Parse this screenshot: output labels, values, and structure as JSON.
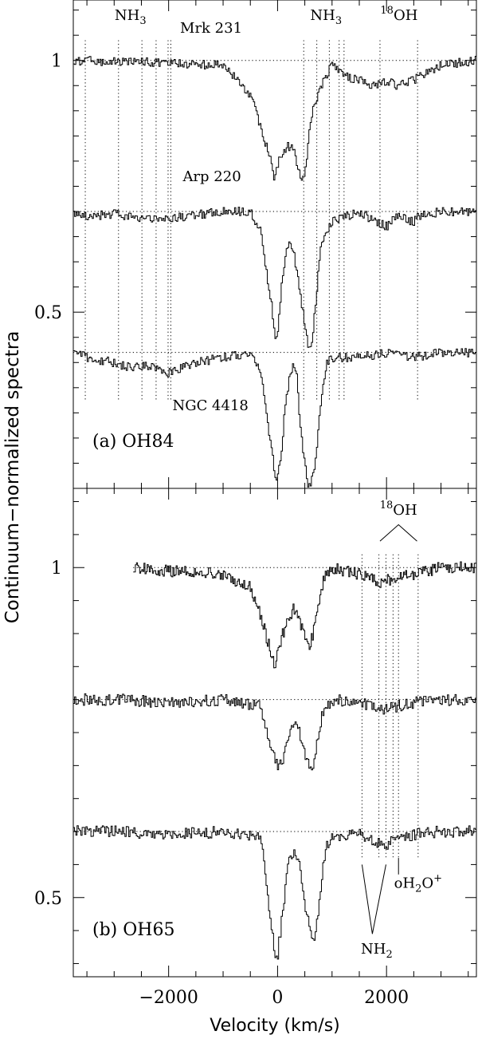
{
  "chart_data": [
    {
      "type": "line",
      "panel_label": "(a) OH84",
      "ylabel": "Continuum−normalized spectra",
      "xlim": [
        -3750,
        3650
      ],
      "ylim": [
        0.15,
        1.12
      ],
      "y_ticks": [
        {
          "value": 1,
          "label": "1"
        },
        {
          "value": 0.5,
          "label": "0.5"
        }
      ],
      "x_ticks": [
        -2000,
        0,
        2000
      ],
      "series": [
        {
          "name": "Mrk 231",
          "label_x": -1790,
          "label_y": 1.055,
          "continuum": 1.0,
          "x": [
            -3750,
            -2000,
            -1000,
            -700,
            -500,
            -400,
            -300,
            -200,
            -100,
            -60,
            0,
            100,
            200,
            300,
            400,
            450,
            500,
            550,
            600,
            700,
            800,
            900,
            1000,
            1200,
            1500,
            1800,
            2000,
            2200,
            2500,
            2600,
            3000,
            3650
          ],
          "y": [
            1.0,
            0.995,
            0.99,
            0.96,
            0.93,
            0.9,
            0.86,
            0.83,
            0.8,
            0.77,
            0.79,
            0.82,
            0.83,
            0.82,
            0.78,
            0.76,
            0.77,
            0.82,
            0.88,
            0.92,
            0.95,
            0.97,
            0.99,
            0.97,
            0.96,
            0.95,
            0.96,
            0.95,
            0.96,
            0.97,
            0.99,
            1.0
          ]
        },
        {
          "name": "Arp 220",
          "label_x": -1740,
          "label_y": 0.76,
          "continuum": 0.7,
          "x": [
            -3750,
            -3500,
            -3000,
            -2600,
            -2000,
            -1000,
            -500,
            -300,
            -200,
            -100,
            -50,
            0,
            100,
            200,
            300,
            400,
            500,
            550,
            600,
            650,
            700,
            800,
            1000,
            1500,
            1800,
            2000,
            2200,
            2500,
            2600,
            3000,
            3650
          ],
          "y": [
            0.7,
            0.69,
            0.695,
            0.685,
            0.685,
            0.7,
            0.7,
            0.66,
            0.58,
            0.51,
            0.45,
            0.46,
            0.58,
            0.64,
            0.62,
            0.55,
            0.48,
            0.44,
            0.43,
            0.45,
            0.52,
            0.63,
            0.68,
            0.7,
            0.68,
            0.67,
            0.69,
            0.68,
            0.69,
            0.7,
            0.7
          ]
        },
        {
          "name": "NGC 4418",
          "label_x": -1930,
          "label_y": 0.305,
          "continuum": 0.42,
          "x": [
            -3750,
            -3500,
            -3000,
            -2700,
            -2400,
            -2000,
            -1500,
            -1000,
            -500,
            -300,
            -200,
            -100,
            -50,
            0,
            80,
            150,
            250,
            300,
            350,
            400,
            500,
            550,
            600,
            700,
            800,
            900,
            1000,
            1500,
            2000,
            2500,
            3000,
            3650
          ],
          "y": [
            0.42,
            0.41,
            0.4,
            0.39,
            0.395,
            0.38,
            0.4,
            0.41,
            0.42,
            0.38,
            0.3,
            0.22,
            0.18,
            0.17,
            0.22,
            0.33,
            0.38,
            0.4,
            0.38,
            0.3,
            0.2,
            0.16,
            0.15,
            0.2,
            0.33,
            0.4,
            0.41,
            0.41,
            0.42,
            0.41,
            0.42,
            0.42
          ]
        }
      ],
      "vertical_markers": [
        {
          "x": -3530,
          "y_top": 1.04,
          "y_bottom": 0.325
        },
        {
          "x": -2920,
          "y_top": 1.04,
          "y_bottom": 0.325
        },
        {
          "x": -2490,
          "y_top": 1.04,
          "y_bottom": 0.325
        },
        {
          "x": -2230,
          "y_top": 1.04,
          "y_bottom": 0.325
        },
        {
          "x": -2010,
          "y_top": 1.04,
          "y_bottom": 0.325
        },
        {
          "x": -1960,
          "y_top": 1.04,
          "y_bottom": 0.325
        },
        {
          "x": 480,
          "y_top": 1.04,
          "y_bottom": 0.325
        },
        {
          "x": 720,
          "y_top": 1.04,
          "y_bottom": 0.325
        },
        {
          "x": 950,
          "y_top": 1.04,
          "y_bottom": 0.325
        },
        {
          "x": 1130,
          "y_top": 1.04,
          "y_bottom": 0.325
        },
        {
          "x": 1220,
          "y_top": 1.04,
          "y_bottom": 0.325
        },
        {
          "x": 1880,
          "y_top": 1.04,
          "y_bottom": 0.325
        },
        {
          "x": 2570,
          "y_top": 1.04,
          "y_bottom": 0.325
        }
      ],
      "annotations": [
        {
          "id": "nh3-left",
          "base": "NH",
          "sub": "3",
          "x": -2700,
          "y": 1.08
        },
        {
          "id": "nh3-right",
          "base": "NH",
          "sub": "3",
          "x": 890,
          "y": 1.08
        },
        {
          "id": "oh18-top",
          "sup": "18",
          "base": "OH",
          "x": 2230,
          "y": 1.08
        }
      ]
    },
    {
      "type": "line",
      "panel_label": "(b) OH65",
      "xlim": [
        -3750,
        3650
      ],
      "ylim": [
        0.38,
        1.12
      ],
      "y_ticks": [
        {
          "value": 1,
          "label": "1"
        },
        {
          "value": 0.5,
          "label": "0.5"
        }
      ],
      "x_ticks": [
        -2000,
        0,
        2000
      ],
      "x_tick_labels": [
        "−2000",
        "0",
        "2000"
      ],
      "xlabel": "Velocity (km/s)",
      "series": [
        {
          "continuum": 1.0,
          "x_start": -2650,
          "x": [
            -2650,
            -2000,
            -1000,
            -500,
            -350,
            -250,
            -150,
            -50,
            0,
            100,
            200,
            300,
            400,
            500,
            600,
            700,
            800,
            900,
            1000,
            1200,
            1500,
            1800,
            1900,
            2000,
            2200,
            2500,
            3000,
            3650
          ],
          "y": [
            1.0,
            0.995,
            0.99,
            0.97,
            0.94,
            0.91,
            0.88,
            0.85,
            0.87,
            0.9,
            0.92,
            0.94,
            0.92,
            0.9,
            0.88,
            0.92,
            0.97,
            0.99,
            1.0,
            0.995,
            0.99,
            0.98,
            0.975,
            0.98,
            0.985,
            0.99,
            1.0,
            1.0
          ]
        },
        {
          "continuum": 0.8,
          "x": [
            -3750,
            -3000,
            -2000,
            -1000,
            -300,
            -200,
            -100,
            0,
            100,
            200,
            300,
            400,
            500,
            600,
            650,
            700,
            800,
            900,
            1000,
            1500,
            1800,
            1900,
            2000,
            2200,
            2500,
            3000,
            3650
          ],
          "y": [
            0.8,
            0.8,
            0.795,
            0.8,
            0.79,
            0.75,
            0.72,
            0.7,
            0.71,
            0.74,
            0.77,
            0.75,
            0.72,
            0.7,
            0.69,
            0.72,
            0.77,
            0.79,
            0.8,
            0.795,
            0.79,
            0.785,
            0.785,
            0.79,
            0.795,
            0.8,
            0.8
          ]
        },
        {
          "continuum": 0.6,
          "x": [
            -3750,
            -3000,
            -2000,
            -1000,
            -300,
            -200,
            -100,
            -50,
            0,
            100,
            200,
            300,
            400,
            500,
            600,
            650,
            700,
            800,
            900,
            1000,
            1500,
            1800,
            2000,
            2200,
            2500,
            3000,
            3650
          ],
          "y": [
            0.6,
            0.6,
            0.595,
            0.6,
            0.59,
            0.52,
            0.45,
            0.42,
            0.41,
            0.48,
            0.55,
            0.57,
            0.55,
            0.49,
            0.45,
            0.43,
            0.44,
            0.52,
            0.58,
            0.59,
            0.595,
            0.585,
            0.58,
            0.59,
            0.595,
            0.6,
            0.6
          ]
        }
      ],
      "vertical_markers": [
        {
          "x": 1550,
          "y_top": 1.02,
          "y_bottom": 0.56
        },
        {
          "x": 1860,
          "y_top": 1.02,
          "y_bottom": 0.56
        },
        {
          "x": 1990,
          "y_top": 1.02,
          "y_bottom": 0.56
        },
        {
          "x": 2120,
          "y_top": 1.02,
          "y_bottom": 0.56
        },
        {
          "x": 2220,
          "y_top": 1.02,
          "y_bottom": 0.56
        },
        {
          "x": 2580,
          "y_top": 1.02,
          "y_bottom": 0.56
        }
      ],
      "annotations": [
        {
          "id": "oh18-bottom",
          "sup": "18",
          "base": "OH",
          "x": 2220,
          "y": 1.08
        },
        {
          "id": "oh2o-plus",
          "base": "oH",
          "sub": "2",
          "tail": "O",
          "sup2": "+",
          "x": 2580,
          "y": 0.515
        },
        {
          "id": "nh2",
          "base": "NH",
          "sub": "2",
          "x": 1820,
          "y": 0.415
        }
      ],
      "brackets": [
        {
          "id": "oh18-bracket",
          "apex_x": 2220,
          "apex_y": 1.065,
          "left_x": 1880,
          "left_y": 1.04,
          "right_x": 2560,
          "right_y": 1.04
        },
        {
          "id": "nh2-bracket",
          "apex_x": 1740,
          "apex_y": 0.445,
          "left_x": 1550,
          "left_y": 0.55,
          "right_x": 1990,
          "right_y": 0.55
        }
      ],
      "marker_ticks": [
        {
          "x": 2220,
          "y_top": 0.56,
          "y_bottom": 0.535
        }
      ]
    }
  ]
}
